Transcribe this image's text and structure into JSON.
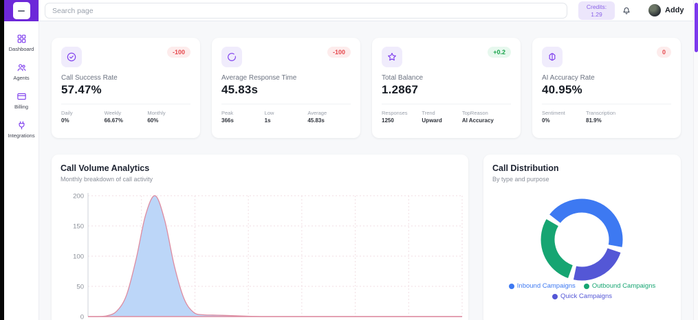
{
  "sidebar": {
    "menu_button_glyph": "",
    "items": [
      {
        "label": "Dashboard",
        "icon": "grid-icon"
      },
      {
        "label": "Agents",
        "icon": "users-icon"
      },
      {
        "label": "Billing",
        "icon": "credit-card-icon"
      },
      {
        "label": "Integrations",
        "icon": "plug-icon"
      }
    ]
  },
  "topbar": {
    "search_placeholder": "Search page",
    "credits_label": "Credits:",
    "credits_value": "1.29",
    "user_name": "Addy"
  },
  "stat_cards": [
    {
      "icon": "check-circle-icon",
      "badge": "-100",
      "badge_type": "negative",
      "title": "Call Success Rate",
      "value": "57.47%",
      "stats": [
        {
          "label": "Daily",
          "value": "0%"
        },
        {
          "label": "Weekly",
          "value": "66.67%"
        },
        {
          "label": "Monthly",
          "value": "60%"
        }
      ]
    },
    {
      "icon": "clock-icon",
      "badge": "-100",
      "badge_type": "negative",
      "title": "Average Response Time",
      "value": "45.83s",
      "stats": [
        {
          "label": "Peak",
          "value": "366s"
        },
        {
          "label": "Low",
          "value": "1s"
        },
        {
          "label": "Average",
          "value": "45.83s"
        }
      ]
    },
    {
      "icon": "star-icon",
      "badge": "+0.2",
      "badge_type": "positive",
      "title": "Total Balance",
      "value": "1.2867",
      "stats": [
        {
          "label": "Responses",
          "value": "1250"
        },
        {
          "label": "Trend",
          "value": "Upward"
        },
        {
          "label": "TopReason",
          "value": "AI Accuracy"
        }
      ]
    },
    {
      "icon": "brain-icon",
      "badge": "0",
      "badge_type": "negative",
      "title": "AI Accuracy Rate",
      "value": "40.95%",
      "stats": [
        {
          "label": "Sentiment",
          "value": "0%"
        },
        {
          "label": "Transcription",
          "value": "81.9%"
        }
      ]
    }
  ],
  "chart_data": [
    {
      "type": "area",
      "title": "Call Volume Analytics",
      "subtitle": "Monthly breakdown of call activity",
      "xlabel": "",
      "ylabel": "",
      "ylim": [
        0,
        200
      ],
      "yticks": [
        0,
        50,
        100,
        150,
        200
      ],
      "x_axis_labels_visible": false,
      "grid": true,
      "values": [
        0,
        0,
        1.5,
        9,
        35,
        94,
        168,
        200,
        159,
        84,
        30,
        7,
        3,
        2.5,
        2,
        1.5,
        1,
        0.5,
        0,
        0,
        0,
        0,
        0,
        0,
        0,
        0,
        0,
        0,
        0,
        0,
        0,
        0,
        0,
        0,
        0,
        0,
        0,
        0,
        0,
        0
      ],
      "line_color": "#dd8ba0",
      "fill_color": "#bcd6f8",
      "grid_color": "#f2dee3",
      "axis_color": "#d9dce1",
      "tick_color": "#8a8f98"
    },
    {
      "type": "donut",
      "title": "Call Distribution",
      "subtitle": "By type and purpose",
      "legend_position": "bottom",
      "segments": [
        {
          "label": "Inbound Campaigns",
          "value": 44,
          "color": "#3d79f2"
        },
        {
          "label": "Quick Campaigns",
          "value": 24,
          "color": "#5457d6"
        },
        {
          "label": "Outbound Campaigns",
          "value": 29,
          "color": "#16a572"
        }
      ],
      "legend": [
        {
          "label": "Inbound Campaigns",
          "color": "#3d79f2"
        },
        {
          "label": "Outbound Campaigns",
          "color": "#16a572"
        },
        {
          "label": "Quick Campaigns",
          "color": "#5457d6"
        }
      ]
    }
  ]
}
